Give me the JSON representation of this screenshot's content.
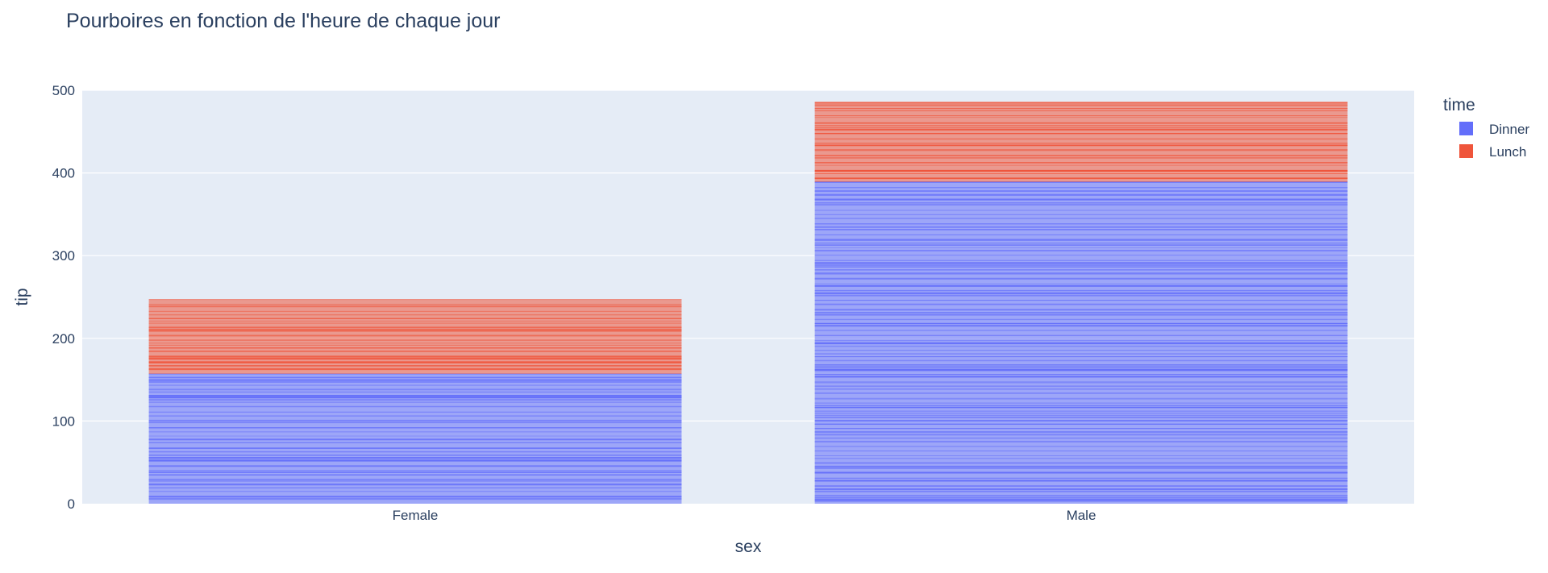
{
  "chart_data": {
    "type": "bar",
    "title": "Pourboires en fonction de l'heure de chaque jour",
    "xlabel": "sex",
    "ylabel": "tip",
    "categories": [
      "Female",
      "Male"
    ],
    "series": [
      {
        "name": "Dinner",
        "values": [
          157,
          389
        ],
        "color": "#636efa"
      },
      {
        "name": "Lunch",
        "values": [
          90,
          96
        ],
        "color": "#ef553b"
      }
    ],
    "ylim": [
      0,
      500
    ],
    "yticks": [
      0,
      100,
      200,
      300,
      400,
      500
    ],
    "barmode": "stack",
    "legend": {
      "title": "time",
      "placement": "top-right"
    },
    "grid": true,
    "plot_background": "#e5ecf6"
  }
}
